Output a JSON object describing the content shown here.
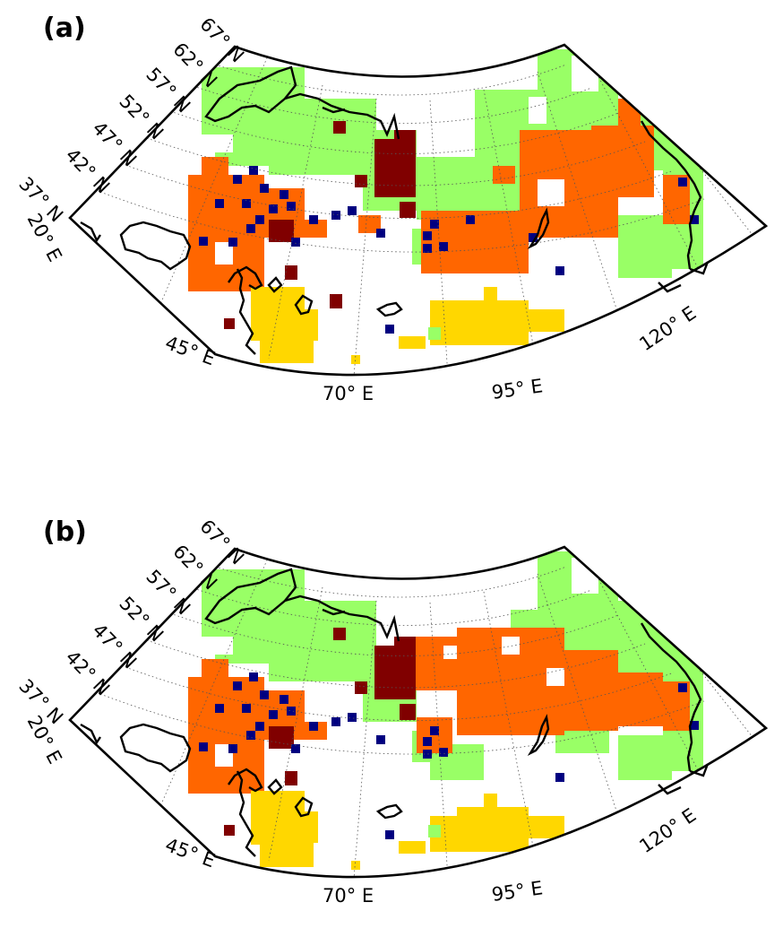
{
  "panels": [
    {
      "label": "(a)"
    },
    {
      "label": "(b)"
    }
  ],
  "latitude_labels": [
    "67° N",
    "62° N",
    "57° N",
    "52° N",
    "47° N",
    "42° N",
    "37° N"
  ],
  "longitude_labels": [
    "20° E",
    "45° E",
    "70° E",
    "95° E",
    "120° E"
  ],
  "map_extent": {
    "lon_range": [
      20,
      135
    ],
    "lat_range": [
      37,
      72
    ],
    "projection": "conic"
  },
  "category_colors": {
    "light_green": "#99ff66",
    "orange": "#ff6600",
    "dark_red": "#800000",
    "yellow": "#ffd700",
    "navy": "#000080"
  }
}
